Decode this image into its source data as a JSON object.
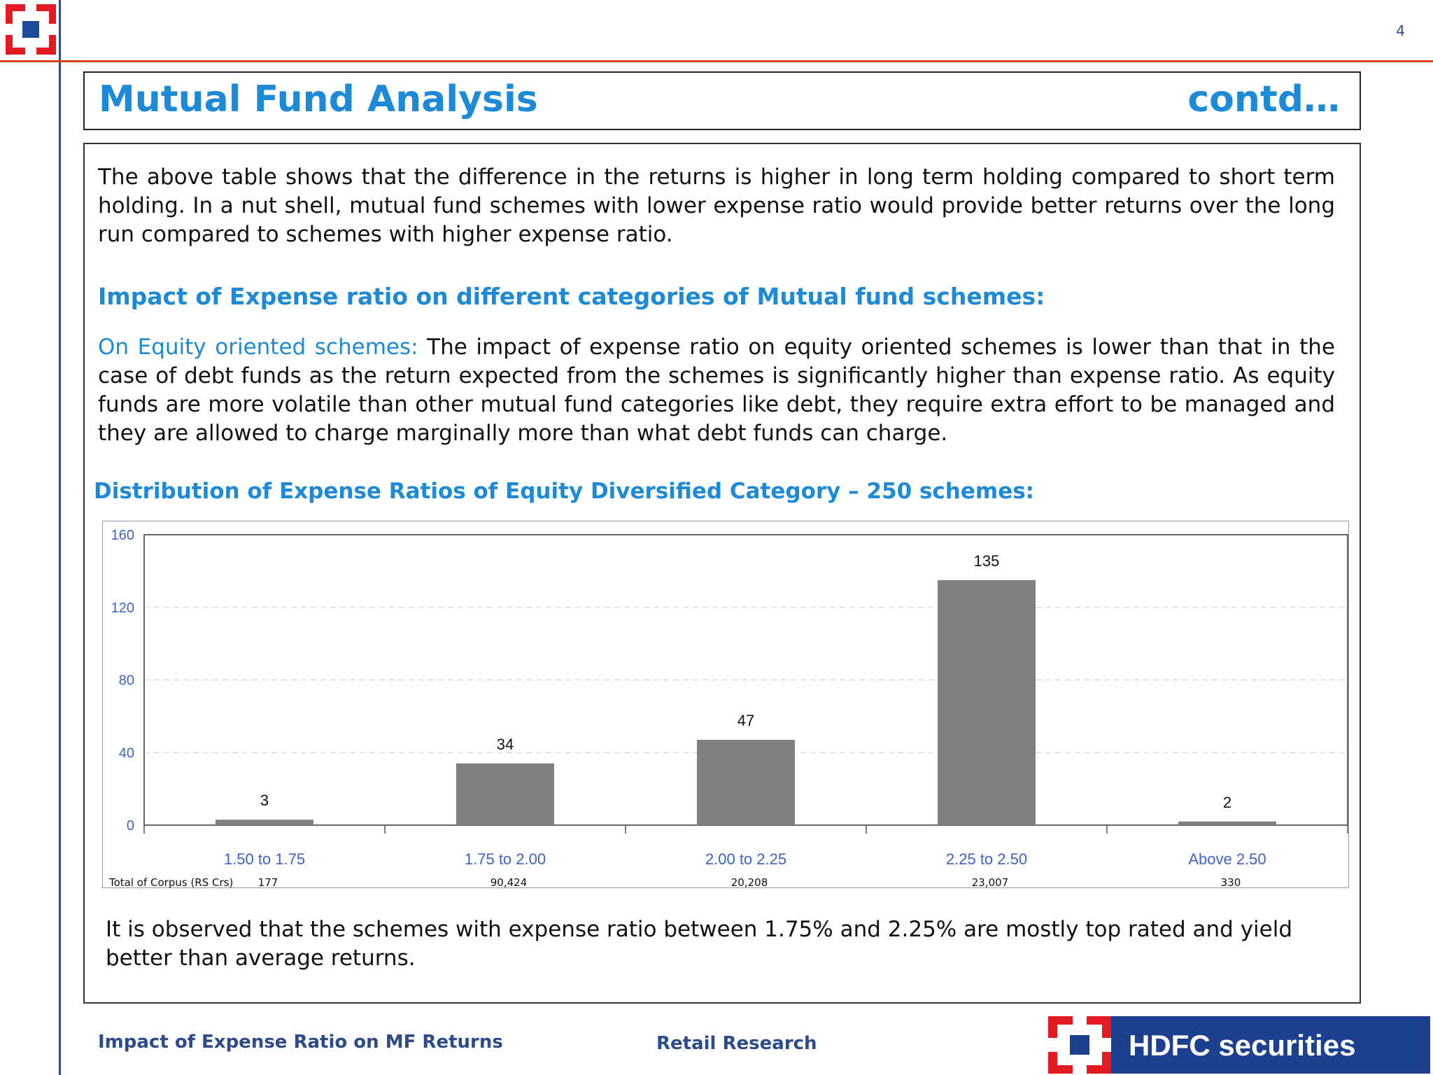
{
  "page": {
    "number": "4"
  },
  "header": {
    "title": "Mutual Fund Analysis",
    "contd": "contd…"
  },
  "content": {
    "para1": "The above table shows that the difference in the returns is higher in long term holding compared to short term holding. In a nut shell, mutual fund schemes with lower expense ratio would provide better returns over the long run compared to schemes with higher expense ratio.",
    "heading_impact": "Impact of Expense ratio on different categories of Mutual fund schemes:",
    "para2_lead": "On Equity oriented schemes:",
    "para2_body": " The impact of expense ratio on equity oriented schemes is lower than that in the case of debt funds as the return expected from the schemes is significantly higher than expense ratio. As equity funds are more volatile than other mutual fund categories like debt, they require extra effort to be managed and they are allowed to charge marginally more than what debt funds can charge.",
    "heading_distribution": "Distribution of Expense Ratios of Equity Diversified Category – 250 schemes:",
    "para3": "It is observed that the schemes with expense ratio between 1.75% and 2.25% are mostly top rated and yield better than average returns."
  },
  "chart_data": {
    "type": "bar",
    "categories": [
      "1.50 to 1.75",
      "1.75 to 2.00",
      "2.00 to 2.25",
      "2.25 to 2.50",
      "Above 2.50"
    ],
    "values": [
      3,
      34,
      47,
      135,
      2
    ],
    "data_labels": [
      "3",
      "34",
      "47",
      "135",
      "2"
    ],
    "yticks": [
      "0",
      "40",
      "80",
      "120",
      "160"
    ],
    "ylim": [
      0,
      160
    ],
    "grid": true,
    "bar_color": "#807f82",
    "corpus_label": "Total of Corpus (RS Crs)",
    "corpus_values": [
      "177",
      "90,424",
      "20,208",
      "23,007",
      "330"
    ]
  },
  "footer": {
    "left": "Impact of Expense Ratio on MF Returns",
    "center": "Retail Research",
    "brand": "HDFC securities"
  },
  "colors": {
    "accent_blue": "#1c8ad6",
    "navy": "#2d4a8a",
    "brand_red": "#e21b23"
  }
}
